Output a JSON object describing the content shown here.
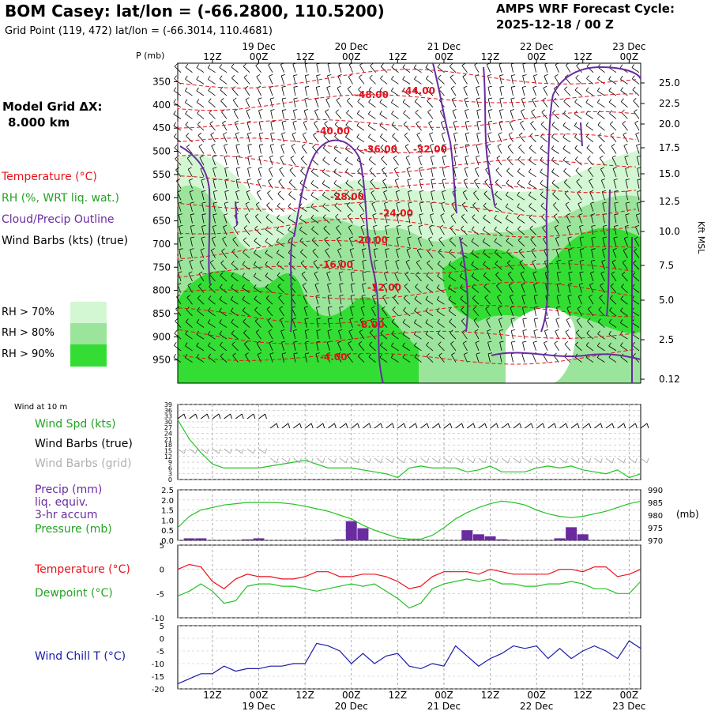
{
  "header": {
    "title": "BOM Casey:  lat/lon = (-66.2800, 110.5200)",
    "subtitle": "Grid Point (119, 472) lat/lon = (-66.3014, 110.4681)",
    "cycle_line1": "AMPS WRF Forecast Cycle:",
    "cycle_line2": "2025-12-18 / 00  Z",
    "grid_label": "Model Grid ΔX:",
    "grid_value": "8.000 km"
  },
  "colors": {
    "temp": "#e8111b",
    "rh": "#22c322",
    "cloud": "#6a2ba0",
    "wind": "#000000",
    "grid_barb": "#aaaaaa",
    "wind_chill": "#1a1aa8",
    "rh70": "#d2f7d2",
    "rh80": "#9be49b",
    "rh90": "#33dd33"
  },
  "legend": {
    "temperature": "Temperature (°C)",
    "rh": "RH (%, WRT liq. wat.)",
    "cloud": "Cloud/Precip Outline",
    "wind": "Wind Barbs (kts) (true)",
    "rh70": "RH > 70%",
    "rh80": "RH > 80%",
    "rh90": "RH > 90%"
  },
  "time_axis": {
    "tick_labels": [
      "12Z",
      "00Z",
      "12Z",
      "00Z",
      "12Z",
      "00Z",
      "12Z",
      "00Z",
      "12Z",
      "00Z"
    ],
    "date_labels": [
      "19 Dec",
      "20 Dec",
      "21 Dec",
      "22 Dec",
      "23 Dec"
    ]
  },
  "chart_data": [
    {
      "type": "heatmap",
      "name": "cross-section",
      "ylabel": "P (mb)",
      "y2label": "Kft MSL",
      "ylim": [
        1000,
        310
      ],
      "pressure_ticks": [
        350,
        400,
        450,
        500,
        550,
        600,
        650,
        700,
        750,
        800,
        850,
        900,
        950
      ],
      "height_ticks": [
        "25.0",
        "22.5",
        "20.0",
        "17.5",
        "15.0",
        "12.5",
        "10.0",
        "7.5",
        "5.0",
        "2.5",
        "0.12"
      ],
      "temperature_contour_labels": [
        "-48.00",
        "-44.00",
        "-40.00",
        "-36.00",
        "-32.00",
        "-28.00",
        "-24.00",
        "-20.00",
        "-16.00",
        "-12.00",
        "-8.00",
        "-4.00"
      ]
    },
    {
      "type": "line",
      "name": "wind 10 m",
      "panel_label": "Wind at 10 m",
      "series_labels": [
        "Wind Spd (kts)",
        "Wind Barbs (true)",
        "Wind Barbs (grid)"
      ],
      "y_ticks": [
        0,
        3,
        6,
        9,
        12,
        15,
        18,
        21,
        24,
        27,
        30,
        33,
        36,
        39
      ],
      "ylim": [
        0,
        39
      ],
      "x_hours": [
        0,
        3,
        6,
        9,
        12,
        15,
        18,
        21,
        24,
        27,
        30,
        33,
        36,
        39,
        42,
        45,
        48,
        51,
        54,
        57,
        60,
        63,
        66,
        69,
        72,
        75,
        78,
        81,
        84,
        87,
        90,
        93,
        96,
        99,
        102,
        105,
        108,
        111,
        114,
        117,
        120
      ],
      "values": [
        31,
        21,
        14,
        8,
        6,
        6,
        6,
        6,
        7,
        8,
        9,
        10,
        8,
        6,
        6,
        6,
        5,
        4,
        3,
        1,
        6,
        7,
        6,
        6,
        6,
        4,
        5,
        7,
        4,
        4,
        4,
        6,
        7,
        6,
        7,
        5,
        4,
        3,
        5,
        1,
        3
      ]
    },
    {
      "type": "bar",
      "name": "precip and pressure",
      "series_labels": [
        "Precip (mm)",
        "liq. equiv.",
        "3-hr accum",
        "Pressure (mb)"
      ],
      "y_ticks": [
        0.0,
        0.5,
        1.0,
        1.5,
        2.0,
        2.5
      ],
      "ylim": [
        0,
        2.5
      ],
      "y2_ticks": [
        970,
        975,
        980,
        985,
        990
      ],
      "y2lim": [
        970,
        990
      ],
      "y2label": "(mb)",
      "x_hours": [
        0,
        3,
        6,
        9,
        12,
        15,
        18,
        21,
        24,
        27,
        30,
        33,
        36,
        39,
        42,
        45,
        48,
        51,
        54,
        57,
        60,
        63,
        66,
        69,
        72,
        75,
        78,
        81,
        84,
        87,
        90,
        93,
        96,
        99,
        102,
        105,
        108,
        111,
        114,
        117,
        120
      ],
      "precip": [
        0,
        0.1,
        0.1,
        0,
        0,
        0,
        0.05,
        0.1,
        0,
        0,
        0,
        0,
        0,
        0,
        0.05,
        0.95,
        0.6,
        0,
        0,
        0,
        0,
        0,
        0,
        0,
        0,
        0.5,
        0.3,
        0.2,
        0.05,
        0,
        0,
        0,
        0,
        0.1,
        0.65,
        0.3,
        0,
        0,
        0,
        0,
        0
      ],
      "pressure": [
        975,
        979.5,
        982,
        983,
        984,
        984.5,
        985,
        985,
        985,
        984.8,
        984.3,
        983.5,
        982.5,
        981.5,
        980,
        978.5,
        976,
        974,
        972.5,
        971,
        970.5,
        970.5,
        972,
        975,
        978.5,
        981,
        983,
        984.5,
        985.5,
        985,
        984,
        982,
        980.5,
        979.5,
        979,
        979.5,
        980.5,
        981.5,
        983,
        984.5,
        985.5
      ]
    },
    {
      "type": "line",
      "name": "temperature and dewpoint",
      "series_labels": [
        "Temperature (°C)",
        "Dewpoint (°C)"
      ],
      "y_ticks": [
        5,
        0,
        -5,
        -10
      ],
      "ylim": [
        -10,
        5
      ],
      "x_hours": [
        0,
        3,
        6,
        9,
        12,
        15,
        18,
        21,
        24,
        27,
        30,
        33,
        36,
        39,
        42,
        45,
        48,
        51,
        54,
        57,
        60,
        63,
        66,
        69,
        72,
        75,
        78,
        81,
        84,
        87,
        90,
        93,
        96,
        99,
        102,
        105,
        108,
        111,
        114,
        117,
        120
      ],
      "temperature": [
        0,
        1,
        0.5,
        -2.5,
        -4,
        -2,
        -1,
        -1.5,
        -1.5,
        -2,
        -2,
        -1.5,
        -0.5,
        -0.5,
        -1.5,
        -1.5,
        -1,
        -1,
        -1.5,
        -2.5,
        -4,
        -3.5,
        -1.5,
        -0.5,
        -0.5,
        -0.5,
        -1,
        0,
        -0.5,
        -1,
        -1,
        -1,
        -1,
        0,
        0,
        -0.5,
        0.5,
        0.5,
        -1.5,
        -1,
        0
      ],
      "dewpoint": [
        -5.5,
        -4.5,
        -3,
        -4.5,
        -7,
        -6.5,
        -3.5,
        -3,
        -3,
        -3.5,
        -3.5,
        -4,
        -4.5,
        -4,
        -3.5,
        -3,
        -3.5,
        -3,
        -4.5,
        -6,
        -8,
        -7,
        -4,
        -3,
        -2.5,
        -2,
        -2.5,
        -2,
        -3,
        -3,
        -3.5,
        -3.5,
        -3,
        -3,
        -2.5,
        -3,
        -4,
        -4,
        -5,
        -5,
        -2.5
      ]
    },
    {
      "type": "line",
      "name": "wind chill",
      "series_labels": [
        "Wind Chill T (°C)"
      ],
      "y_ticks": [
        5,
        0,
        -5,
        -10,
        -15,
        -20
      ],
      "ylim": [
        -20,
        5
      ],
      "x_hours": [
        0,
        3,
        6,
        9,
        12,
        15,
        18,
        21,
        24,
        27,
        30,
        33,
        36,
        39,
        42,
        45,
        48,
        51,
        54,
        57,
        60,
        63,
        66,
        69,
        72,
        75,
        78,
        81,
        84,
        87,
        90,
        93,
        96,
        99,
        102,
        105,
        108,
        111,
        114,
        117,
        120
      ],
      "values": [
        -18,
        -16,
        -14,
        -14,
        -11,
        -13,
        -12,
        -12,
        -11,
        -11,
        -10,
        -10,
        -2,
        -3,
        -5,
        -10,
        -6,
        -10,
        -7,
        -6,
        -11,
        -12,
        -10,
        -11,
        -3,
        -7,
        -11,
        -8,
        -6,
        -3,
        -4,
        -3,
        -8,
        -4,
        -8,
        -5,
        -3,
        -5,
        -8,
        -1,
        -4
      ]
    }
  ]
}
